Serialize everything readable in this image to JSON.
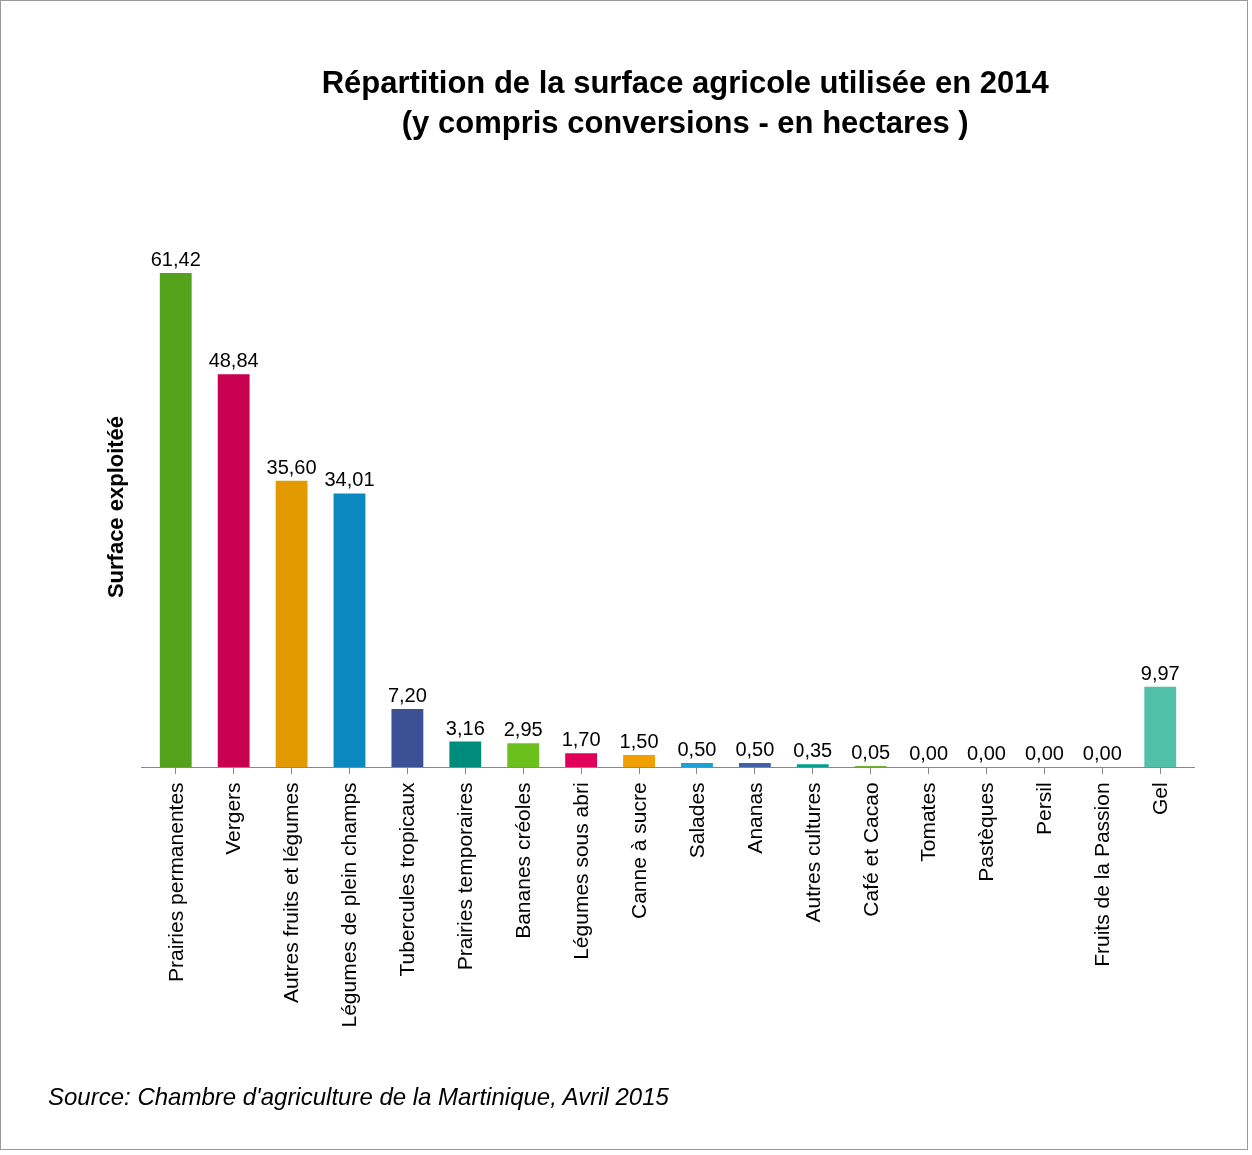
{
  "chart_data": {
    "type": "bar",
    "title": "Répartition de la surface agricole utilisée en 2014\n(y compris conversions - en hectares )",
    "ylabel": "Surface exploitéé",
    "categories": [
      "Prairies permanentes",
      "Vergers",
      "Autres fruits et légumes",
      "Légumes de plein champs",
      "Tubercules tropicaux",
      "Prairies temporaires",
      "Bananes créoles",
      "Légumes sous abri",
      "Canne à sucre",
      "Salades",
      "Ananas",
      "Autres cultures",
      "Café et Cacao",
      "Tomates",
      "Pastèques",
      "Persil",
      "Fruits de la Passion",
      "Gel"
    ],
    "values": [
      61.42,
      48.84,
      35.6,
      34.01,
      7.2,
      3.16,
      2.95,
      1.7,
      1.5,
      0.5,
      0.5,
      0.35,
      0.05,
      0,
      0,
      0,
      0,
      9.97
    ],
    "value_labels": [
      "61,42",
      "48,84",
      "35,60",
      "34,01",
      "7,20",
      "3,16",
      "2,95",
      "1,70",
      "1,50",
      "0,50",
      "0,50",
      "0,35",
      "0,05",
      "0,00",
      "0,00",
      "0,00",
      "0,00",
      "9,97"
    ],
    "colors": [
      "#54a11c",
      "#c8004f",
      "#e39a00",
      "#0a88bf",
      "#3c5096",
      "#008c7c",
      "#6cc01c",
      "#e0005a",
      "#f0a000",
      "#1aa0d8",
      "#4060a8",
      "#00a090",
      "#70b030",
      "#d02060",
      "#d09010",
      "#2090c0",
      "#506090",
      "#50c0a8"
    ],
    "annotations": [
      "Source: Chambre d'agriculture de la Martinique, Avril 2015"
    ],
    "grid": false,
    "legend": false
  }
}
